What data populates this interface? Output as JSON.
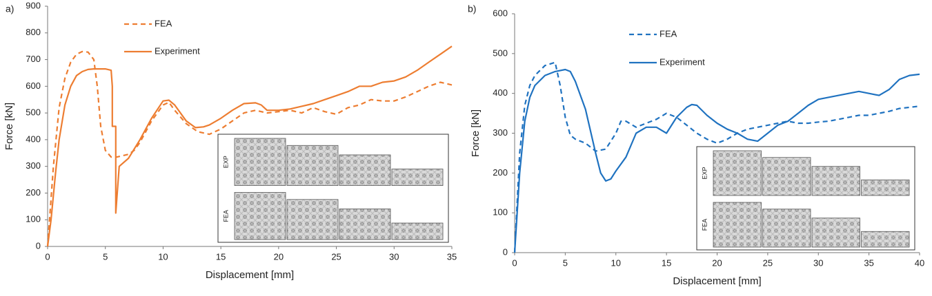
{
  "chart_data": [
    {
      "type": "line",
      "panel_label": "a)",
      "xlabel": "Displacement [mm]",
      "ylabel": "Force [kN]",
      "xlim": [
        0,
        35
      ],
      "ylim": [
        0,
        900
      ],
      "xticks": [
        0,
        5,
        10,
        15,
        20,
        25,
        30,
        35
      ],
      "yticks": [
        0,
        100,
        200,
        300,
        400,
        500,
        600,
        700,
        800,
        900
      ],
      "inset_labels": [
        "EXP",
        "FEA"
      ],
      "series": [
        {
          "name": "FEA",
          "color": "#ed7d31",
          "dash": true,
          "x": [
            0,
            0.5,
            1,
            1.5,
            2,
            2.5,
            3,
            3.5,
            4,
            4.3,
            4.6,
            5,
            5.5,
            6,
            6.5,
            7,
            7.5,
            8,
            9,
            10,
            10.5,
            11,
            12,
            13,
            14,
            15,
            16,
            17,
            18,
            19,
            20,
            21,
            22,
            23,
            24,
            25,
            26,
            27,
            28,
            29,
            30,
            31,
            32,
            33,
            34,
            35
          ],
          "values": [
            0,
            300,
            520,
            630,
            690,
            720,
            730,
            728,
            700,
            600,
            450,
            360,
            335,
            335,
            340,
            345,
            360,
            390,
            470,
            530,
            540,
            510,
            460,
            430,
            420,
            440,
            470,
            500,
            510,
            500,
            505,
            510,
            500,
            520,
            505,
            495,
            520,
            530,
            550,
            545,
            545,
            560,
            580,
            600,
            615,
            605
          ]
        },
        {
          "name": "Experiment",
          "color": "#ed7d31",
          "dash": false,
          "x": [
            0,
            0.3,
            0.7,
            1,
            1.5,
            2,
            2.5,
            3,
            3.5,
            4,
            5,
            5.5,
            5.6,
            5.6,
            5.9,
            5.9,
            6.2,
            7,
            8,
            9,
            10,
            10.5,
            11,
            12,
            12.8,
            13.5,
            14,
            15,
            16,
            17,
            18,
            18.5,
            19,
            20,
            21,
            22,
            23,
            24,
            25,
            26,
            27,
            28,
            29,
            30,
            31,
            32,
            33,
            34,
            35
          ],
          "values": [
            0,
            100,
            280,
            400,
            530,
            600,
            640,
            655,
            663,
            665,
            665,
            660,
            600,
            450,
            450,
            125,
            300,
            330,
            400,
            480,
            545,
            548,
            530,
            470,
            445,
            448,
            455,
            480,
            510,
            535,
            538,
            530,
            510,
            510,
            515,
            525,
            535,
            550,
            565,
            580,
            600,
            600,
            615,
            620,
            635,
            660,
            690,
            720,
            750
          ]
        }
      ]
    },
    {
      "type": "line",
      "panel_label": "b)",
      "xlabel": "Displacement [mm]",
      "ylabel": "Force [kN]",
      "xlim": [
        0,
        40
      ],
      "ylim": [
        0,
        600
      ],
      "xticks": [
        0,
        5,
        10,
        15,
        20,
        25,
        30,
        35,
        40
      ],
      "yticks": [
        0,
        100,
        200,
        300,
        400,
        500,
        600
      ],
      "inset_labels": [
        "EXP",
        "FEA"
      ],
      "series": [
        {
          "name": "FEA",
          "color": "#1f72c0",
          "dash": true,
          "x": [
            0,
            0.5,
            1,
            1.5,
            2,
            3,
            4,
            4.5,
            5,
            5.5,
            6,
            7,
            8,
            9,
            10,
            10.5,
            11,
            12,
            13,
            14,
            15,
            16,
            17,
            18,
            19,
            20,
            21,
            22,
            23,
            24,
            25,
            26,
            27,
            28,
            29,
            30,
            31,
            32,
            33,
            34,
            35,
            36,
            37,
            38,
            39,
            40
          ],
          "values": [
            0,
            250,
            370,
            420,
            445,
            470,
            478,
            420,
            340,
            295,
            285,
            275,
            255,
            260,
            300,
            330,
            330,
            315,
            325,
            335,
            350,
            340,
            320,
            300,
            285,
            275,
            285,
            300,
            310,
            315,
            320,
            325,
            330,
            325,
            325,
            328,
            330,
            335,
            340,
            345,
            345,
            350,
            355,
            362,
            365,
            368
          ]
        },
        {
          "name": "Experiment",
          "color": "#1f72c0",
          "dash": false,
          "x": [
            0,
            0.5,
            1,
            1.5,
            2,
            3,
            4,
            5,
            5.5,
            6,
            7,
            8,
            8.5,
            9,
            9.5,
            10,
            11,
            12,
            13,
            14,
            15,
            16,
            17,
            17.5,
            18,
            19,
            20,
            21,
            22,
            23,
            24,
            25,
            26,
            27,
            28,
            29,
            30,
            31,
            32,
            33,
            34,
            35,
            36,
            37,
            38,
            39,
            40
          ],
          "values": [
            0,
            200,
            330,
            390,
            420,
            445,
            455,
            460,
            455,
            430,
            360,
            250,
            200,
            180,
            185,
            205,
            240,
            300,
            315,
            315,
            300,
            340,
            365,
            372,
            370,
            345,
            325,
            310,
            300,
            285,
            280,
            300,
            320,
            330,
            350,
            370,
            385,
            390,
            395,
            400,
            405,
            400,
            395,
            410,
            435,
            445,
            448
          ]
        }
      ]
    }
  ]
}
